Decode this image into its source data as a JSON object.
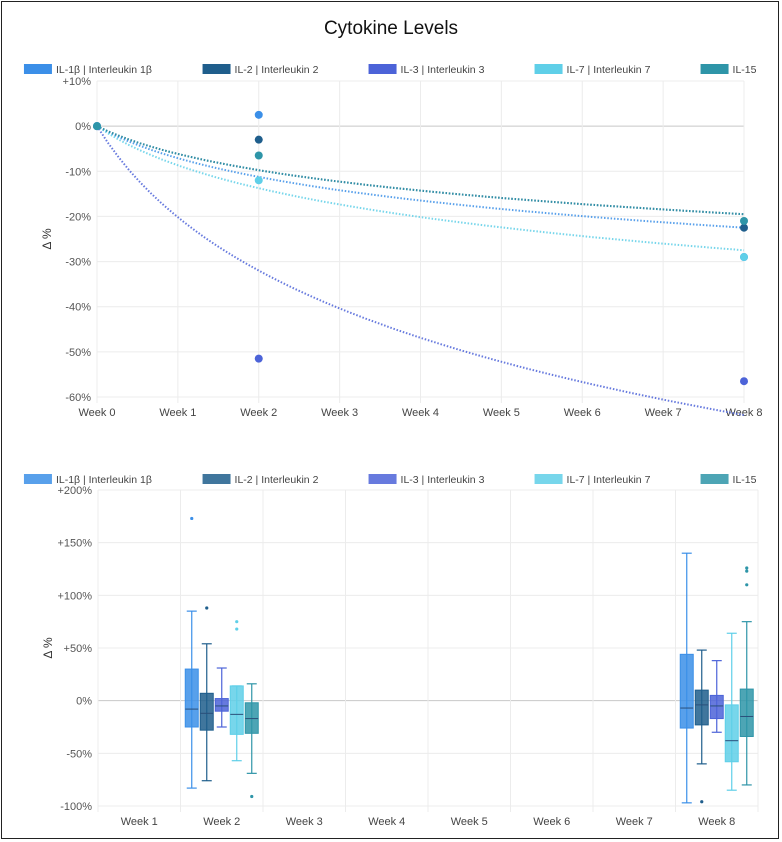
{
  "title": "Cytokine Levels",
  "colors": {
    "IL-1b": "#3b8fe8",
    "IL-2": "#1f5e8c",
    "IL-3": "#4c63d8",
    "IL-7": "#5fcfe8",
    "IL-15": "#2e95a8"
  },
  "chart_data": [
    {
      "type": "scatter",
      "title": "",
      "ylabel": "Δ %",
      "xlabel": "",
      "categories": [
        "Week 0",
        "Week 1",
        "Week 2",
        "Week 3",
        "Week 4",
        "Week 5",
        "Week 6",
        "Week 7",
        "Week 8"
      ],
      "ylim": [
        -60,
        10
      ],
      "yticks": [
        10,
        0,
        -10,
        -20,
        -30,
        -40,
        -50,
        -60
      ],
      "ytick_labels": [
        "+10%",
        "0%",
        "-10%",
        "-20%",
        "-30%",
        "-40%",
        "-50%",
        "-60%"
      ],
      "series": [
        {
          "name": "IL-1β | Interleukin 1β",
          "color_key": "IL-1b",
          "points": [
            [
              0,
              0
            ],
            [
              2,
              2.5
            ],
            [
              8,
              -29
            ]
          ],
          "trend_end": -22.5
        },
        {
          "name": "IL-2 | Interleukin 2",
          "color_key": "IL-2",
          "points": [
            [
              0,
              0
            ],
            [
              2,
              -3
            ],
            [
              8,
              -22.5
            ]
          ],
          "trend_end": -19.5
        },
        {
          "name": "IL-3 | Interleukin 3",
          "color_key": "IL-3",
          "points": [
            [
              0,
              0
            ],
            [
              2,
              -51.5
            ],
            [
              8,
              -56.5
            ]
          ],
          "trend_end": -64
        },
        {
          "name": "IL-7 | Interleukin 7",
          "color_key": "IL-7",
          "points": [
            [
              0,
              0
            ],
            [
              2,
              -12
            ],
            [
              8,
              -29
            ]
          ],
          "trend_end": -27.5
        },
        {
          "name": "IL-15",
          "color_key": "IL-15",
          "points": [
            [
              0,
              0
            ],
            [
              2,
              -6.5
            ],
            [
              8,
              -21
            ]
          ],
          "trend_end": -19.5
        }
      ]
    },
    {
      "type": "box",
      "title": "",
      "ylabel": "Δ %",
      "xlabel": "",
      "categories": [
        "Week 1",
        "Week 2",
        "Week 3",
        "Week 4",
        "Week 5",
        "Week 6",
        "Week 7",
        "Week 8"
      ],
      "ylim": [
        -100,
        200
      ],
      "yticks": [
        200,
        150,
        100,
        50,
        0,
        -50,
        -100
      ],
      "ytick_labels": [
        "+200%",
        "+150%",
        "+100%",
        "+50%",
        "0%",
        "-50%",
        "-100%"
      ],
      "series": [
        {
          "name": "IL-1β | Interleukin 1β",
          "color_key": "IL-1b",
          "boxes": [
            {
              "cat": 1,
              "min": -83,
              "q1": -25,
              "median": -8,
              "q3": 30,
              "max": 85,
              "outliers": [
                173
              ]
            },
            {
              "cat": 7,
              "min": -97,
              "q1": -26,
              "median": -7,
              "q3": 44,
              "max": 140,
              "outliers": []
            }
          ]
        },
        {
          "name": "IL-2 | Interleukin 2",
          "color_key": "IL-2",
          "boxes": [
            {
              "cat": 1,
              "min": -76,
              "q1": -28,
              "median": -12,
              "q3": 7,
              "max": 54,
              "outliers": [
                88
              ]
            },
            {
              "cat": 7,
              "min": -60,
              "q1": -23,
              "median": -4,
              "q3": 10,
              "max": 48,
              "outliers": [
                -96
              ]
            }
          ]
        },
        {
          "name": "IL-3 | Interleukin 3",
          "color_key": "IL-3",
          "boxes": [
            {
              "cat": 1,
              "min": -25,
              "q1": -10,
              "median": -5,
              "q3": 2,
              "max": 31,
              "outliers": []
            },
            {
              "cat": 7,
              "min": -30,
              "q1": -17,
              "median": -5,
              "q3": 5,
              "max": 38,
              "outliers": []
            }
          ]
        },
        {
          "name": "IL-7 | Interleukin 7",
          "color_key": "IL-7",
          "boxes": [
            {
              "cat": 1,
              "min": -57,
              "q1": -32,
              "median": -13,
              "q3": 14,
              "max": 14,
              "outliers": [
                75,
                68
              ]
            },
            {
              "cat": 7,
              "min": -85,
              "q1": -58,
              "median": -38,
              "q3": -4,
              "max": 64,
              "outliers": []
            }
          ]
        },
        {
          "name": "IL-15",
          "color_key": "IL-15",
          "boxes": [
            {
              "cat": 1,
              "min": -69,
              "q1": -31,
              "median": -17,
              "q3": -2,
              "max": 16,
              "outliers": [
                -91
              ]
            },
            {
              "cat": 7,
              "min": -80,
              "q1": -34,
              "median": -15,
              "q3": 11,
              "max": 75,
              "outliers": [
                126,
                123,
                110
              ]
            }
          ]
        }
      ]
    }
  ]
}
